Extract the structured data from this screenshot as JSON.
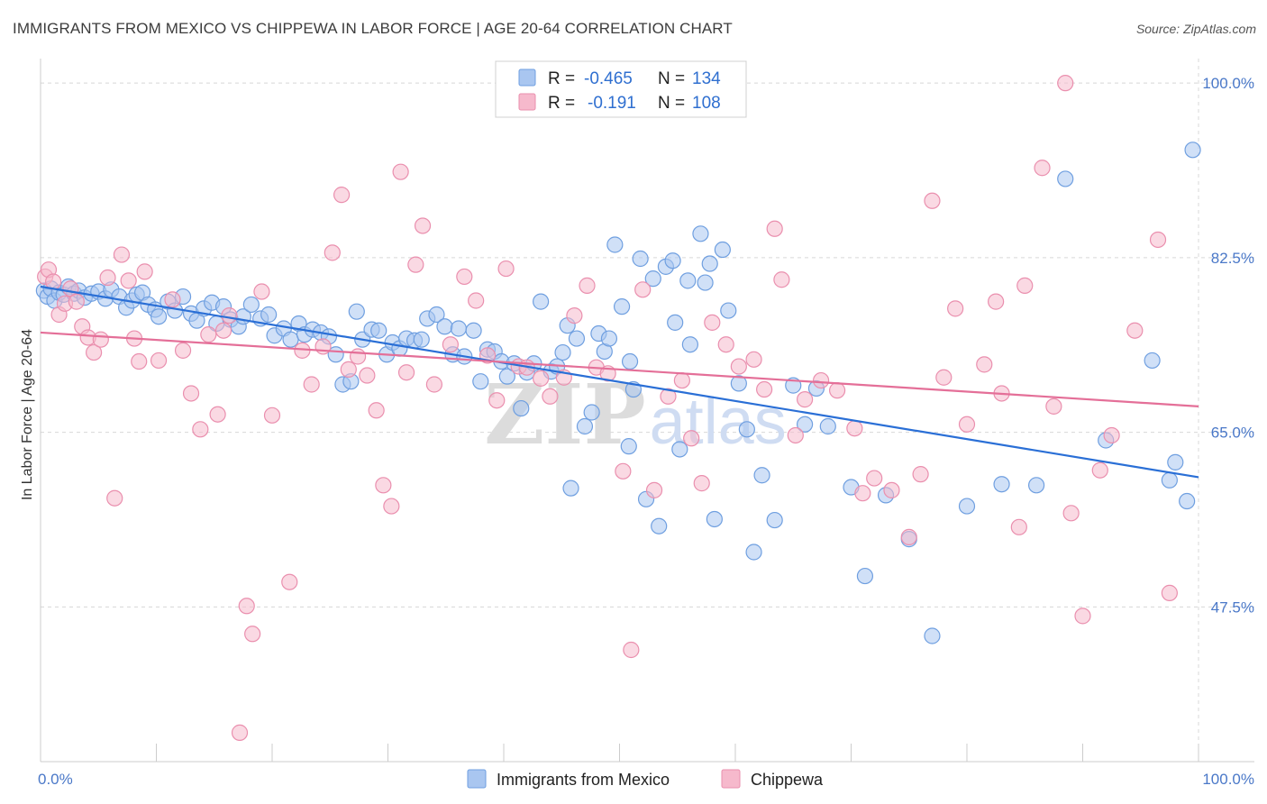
{
  "title": "IMMIGRANTS FROM MEXICO VS CHIPPEWA IN LABOR FORCE | AGE 20-64 CORRELATION CHART",
  "source": "Source: ZipAtlas.com",
  "watermark": {
    "zip": "ZIP",
    "atlas": "atlas"
  },
  "colors": {
    "blue_fill": "#a9c6f0",
    "blue_stroke": "#6f9fe0",
    "blue_line": "#2a6fd6",
    "pink_fill": "#f6b9cc",
    "pink_stroke": "#ea8fae",
    "pink_line": "#e46f98",
    "axis_text": "#4a78c8",
    "grid": "#d8d8d8"
  },
  "legend": {
    "rows": [
      {
        "r_label": "R =",
        "r_value": "-0.465",
        "n_label": "N =",
        "n_value": "134"
      },
      {
        "r_label": "R =",
        "r_value": "-0.191",
        "n_label": "N =",
        "n_value": "108"
      }
    ]
  },
  "chart_data": {
    "type": "scatter",
    "ylabel": "In Labor Force | Age 20-64",
    "xlabel": "",
    "xlim": [
      0,
      100
    ],
    "ylim": [
      32,
      102
    ],
    "x_tick_labels": [
      "0.0%",
      "100.0%"
    ],
    "y_ticks": [
      47.5,
      65.0,
      82.5,
      100.0
    ],
    "y_tick_labels": [
      "47.5%",
      "65.0%",
      "82.5%",
      "100.0%"
    ],
    "grid": true,
    "legend_position": "top-center",
    "series": [
      {
        "name": "Immigrants from Mexico",
        "R": -0.465,
        "N": 134,
        "trend": {
          "x": [
            0,
            100
          ],
          "y": [
            79.6,
            60.5
          ]
        },
        "points": [
          [
            0.3,
            79.2
          ],
          [
            0.6,
            78.6
          ],
          [
            0.9,
            79.4
          ],
          [
            1.2,
            78.2
          ],
          [
            1.6,
            79.0
          ],
          [
            2.0,
            78.8
          ],
          [
            2.4,
            79.6
          ],
          [
            2.9,
            78.9
          ],
          [
            3.3,
            79.2
          ],
          [
            3.8,
            78.5
          ],
          [
            4.4,
            78.9
          ],
          [
            5.0,
            79.1
          ],
          [
            5.6,
            78.4
          ],
          [
            6.1,
            79.3
          ],
          [
            6.8,
            78.6
          ],
          [
            7.4,
            77.5
          ],
          [
            7.9,
            78.2
          ],
          [
            8.3,
            78.8
          ],
          [
            8.8,
            79.0
          ],
          [
            9.3,
            77.8
          ],
          [
            9.9,
            77.3
          ],
          [
            10.2,
            76.6
          ],
          [
            11.0,
            78.1
          ],
          [
            11.6,
            77.2
          ],
          [
            12.3,
            78.6
          ],
          [
            13.0,
            76.9
          ],
          [
            13.5,
            76.2
          ],
          [
            14.1,
            77.4
          ],
          [
            14.8,
            78.0
          ],
          [
            15.2,
            75.9
          ],
          [
            15.8,
            77.6
          ],
          [
            16.4,
            76.3
          ],
          [
            17.1,
            75.6
          ],
          [
            17.5,
            76.6
          ],
          [
            18.2,
            77.8
          ],
          [
            19.0,
            76.4
          ],
          [
            19.7,
            76.8
          ],
          [
            20.2,
            74.7
          ],
          [
            21.0,
            75.4
          ],
          [
            21.6,
            74.3
          ],
          [
            22.3,
            75.9
          ],
          [
            22.8,
            74.8
          ],
          [
            23.5,
            75.3
          ],
          [
            24.2,
            75.0
          ],
          [
            24.9,
            74.6
          ],
          [
            25.5,
            72.8
          ],
          [
            26.1,
            69.8
          ],
          [
            26.8,
            70.1
          ],
          [
            27.3,
            77.1
          ],
          [
            27.8,
            74.3
          ],
          [
            28.6,
            75.3
          ],
          [
            29.2,
            75.2
          ],
          [
            29.9,
            72.8
          ],
          [
            30.4,
            74.0
          ],
          [
            31.0,
            73.4
          ],
          [
            31.6,
            74.4
          ],
          [
            32.3,
            74.2
          ],
          [
            32.9,
            74.3
          ],
          [
            33.4,
            76.4
          ],
          [
            34.2,
            76.8
          ],
          [
            34.9,
            75.6
          ],
          [
            35.6,
            72.8
          ],
          [
            36.1,
            75.4
          ],
          [
            36.6,
            72.6
          ],
          [
            37.4,
            75.2
          ],
          [
            38.0,
            70.1
          ],
          [
            38.6,
            73.3
          ],
          [
            39.2,
            73.1
          ],
          [
            39.8,
            72.1
          ],
          [
            40.3,
            70.6
          ],
          [
            40.9,
            71.9
          ],
          [
            41.5,
            67.4
          ],
          [
            42.0,
            71.0
          ],
          [
            42.6,
            71.9
          ],
          [
            43.2,
            78.1
          ],
          [
            44.1,
            71.1
          ],
          [
            44.6,
            71.6
          ],
          [
            45.1,
            73.0
          ],
          [
            45.5,
            75.7
          ],
          [
            45.8,
            59.4
          ],
          [
            46.3,
            74.4
          ],
          [
            47.0,
            65.6
          ],
          [
            47.6,
            67.0
          ],
          [
            48.2,
            74.9
          ],
          [
            48.7,
            73.1
          ],
          [
            49.1,
            74.4
          ],
          [
            49.6,
            83.8
          ],
          [
            50.2,
            77.6
          ],
          [
            50.8,
            63.6
          ],
          [
            50.9,
            72.1
          ],
          [
            51.2,
            69.3
          ],
          [
            51.8,
            82.4
          ],
          [
            52.3,
            58.3
          ],
          [
            52.9,
            80.4
          ],
          [
            53.4,
            55.6
          ],
          [
            54.0,
            81.6
          ],
          [
            54.6,
            82.2
          ],
          [
            54.8,
            76.0
          ],
          [
            55.2,
            63.3
          ],
          [
            55.9,
            80.2
          ],
          [
            56.1,
            73.8
          ],
          [
            57.0,
            84.9
          ],
          [
            57.4,
            80.0
          ],
          [
            57.8,
            81.9
          ],
          [
            58.2,
            56.3
          ],
          [
            58.9,
            83.3
          ],
          [
            59.4,
            77.2
          ],
          [
            60.3,
            69.9
          ],
          [
            61.0,
            65.3
          ],
          [
            61.6,
            53.0
          ],
          [
            62.3,
            60.7
          ],
          [
            63.4,
            56.2
          ],
          [
            65.0,
            69.7
          ],
          [
            66.0,
            65.8
          ],
          [
            67.0,
            69.4
          ],
          [
            68.0,
            65.6
          ],
          [
            70.0,
            59.5
          ],
          [
            71.2,
            50.6
          ],
          [
            73.0,
            58.7
          ],
          [
            75.0,
            54.3
          ],
          [
            77.0,
            44.6
          ],
          [
            80.0,
            57.6
          ],
          [
            83.0,
            59.8
          ],
          [
            86.0,
            59.7
          ],
          [
            88.5,
            90.4
          ],
          [
            92.0,
            64.2
          ],
          [
            96.0,
            72.2
          ],
          [
            97.5,
            60.2
          ],
          [
            98.0,
            62.0
          ],
          [
            99.0,
            58.1
          ],
          [
            99.5,
            93.3
          ]
        ]
      },
      {
        "name": "Chippewa",
        "R": -0.191,
        "N": 108,
        "trend": {
          "x": [
            0,
            100
          ],
          "y": [
            75.0,
            67.6
          ]
        },
        "points": [
          [
            0.4,
            80.6
          ],
          [
            0.7,
            81.3
          ],
          [
            1.1,
            80.1
          ],
          [
            1.6,
            76.8
          ],
          [
            2.1,
            77.9
          ],
          [
            2.6,
            79.4
          ],
          [
            3.1,
            78.1
          ],
          [
            3.6,
            75.6
          ],
          [
            4.1,
            74.5
          ],
          [
            4.6,
            73.0
          ],
          [
            5.2,
            74.3
          ],
          [
            5.8,
            80.5
          ],
          [
            6.4,
            58.4
          ],
          [
            7.0,
            82.8
          ],
          [
            7.6,
            80.2
          ],
          [
            8.1,
            74.4
          ],
          [
            8.5,
            72.1
          ],
          [
            9.0,
            81.1
          ],
          [
            10.2,
            72.2
          ],
          [
            11.4,
            78.3
          ],
          [
            12.3,
            73.2
          ],
          [
            13.0,
            68.9
          ],
          [
            13.8,
            65.3
          ],
          [
            14.5,
            74.8
          ],
          [
            15.3,
            66.8
          ],
          [
            15.8,
            75.2
          ],
          [
            16.3,
            76.7
          ],
          [
            17.2,
            34.9
          ],
          [
            17.8,
            47.6
          ],
          [
            18.3,
            44.8
          ],
          [
            19.1,
            79.1
          ],
          [
            20.0,
            66.7
          ],
          [
            21.5,
            50.0
          ],
          [
            22.6,
            73.2
          ],
          [
            23.4,
            69.8
          ],
          [
            24.4,
            73.6
          ],
          [
            25.2,
            83.0
          ],
          [
            26.0,
            88.8
          ],
          [
            26.6,
            71.3
          ],
          [
            27.4,
            72.6
          ],
          [
            28.2,
            70.7
          ],
          [
            29.0,
            67.2
          ],
          [
            29.6,
            59.7
          ],
          [
            30.3,
            57.6
          ],
          [
            31.1,
            91.1
          ],
          [
            31.6,
            71.0
          ],
          [
            32.4,
            81.8
          ],
          [
            33.0,
            85.7
          ],
          [
            34.0,
            69.8
          ],
          [
            35.4,
            73.8
          ],
          [
            36.6,
            80.6
          ],
          [
            37.6,
            78.2
          ],
          [
            38.6,
            72.7
          ],
          [
            39.4,
            68.2
          ],
          [
            40.2,
            81.4
          ],
          [
            41.3,
            71.6
          ],
          [
            42.0,
            71.5
          ],
          [
            43.2,
            70.4
          ],
          [
            44.0,
            68.6
          ],
          [
            45.2,
            70.5
          ],
          [
            46.1,
            76.7
          ],
          [
            47.2,
            79.7
          ],
          [
            48.0,
            71.5
          ],
          [
            49.0,
            70.9
          ],
          [
            50.3,
            61.1
          ],
          [
            51.0,
            43.2
          ],
          [
            52.0,
            79.3
          ],
          [
            53.0,
            59.2
          ],
          [
            54.2,
            68.6
          ],
          [
            55.4,
            70.2
          ],
          [
            56.2,
            64.4
          ],
          [
            57.1,
            59.9
          ],
          [
            58.0,
            76.0
          ],
          [
            59.2,
            73.8
          ],
          [
            60.3,
            71.6
          ],
          [
            61.6,
            72.3
          ],
          [
            62.5,
            69.3
          ],
          [
            63.4,
            85.4
          ],
          [
            64.0,
            80.3
          ],
          [
            65.2,
            64.7
          ],
          [
            66.0,
            68.3
          ],
          [
            67.4,
            70.2
          ],
          [
            68.8,
            69.2
          ],
          [
            70.3,
            65.4
          ],
          [
            71.0,
            58.9
          ],
          [
            72.0,
            60.4
          ],
          [
            73.5,
            59.2
          ],
          [
            75.0,
            54.5
          ],
          [
            76.0,
            60.8
          ],
          [
            77.0,
            88.2
          ],
          [
            78.0,
            70.5
          ],
          [
            79.0,
            77.4
          ],
          [
            80.0,
            65.8
          ],
          [
            81.5,
            71.8
          ],
          [
            82.5,
            78.1
          ],
          [
            83.0,
            68.9
          ],
          [
            84.5,
            55.5
          ],
          [
            85.0,
            79.7
          ],
          [
            86.5,
            91.5
          ],
          [
            87.5,
            67.6
          ],
          [
            88.5,
            100.0
          ],
          [
            89.0,
            56.9
          ],
          [
            90.0,
            46.6
          ],
          [
            91.5,
            61.2
          ],
          [
            92.5,
            64.7
          ],
          [
            94.5,
            75.2
          ],
          [
            96.5,
            84.3
          ],
          [
            97.5,
            48.9
          ]
        ]
      }
    ]
  },
  "bottom_legend": [
    {
      "label": "Immigrants from Mexico"
    },
    {
      "label": "Chippewa"
    }
  ]
}
